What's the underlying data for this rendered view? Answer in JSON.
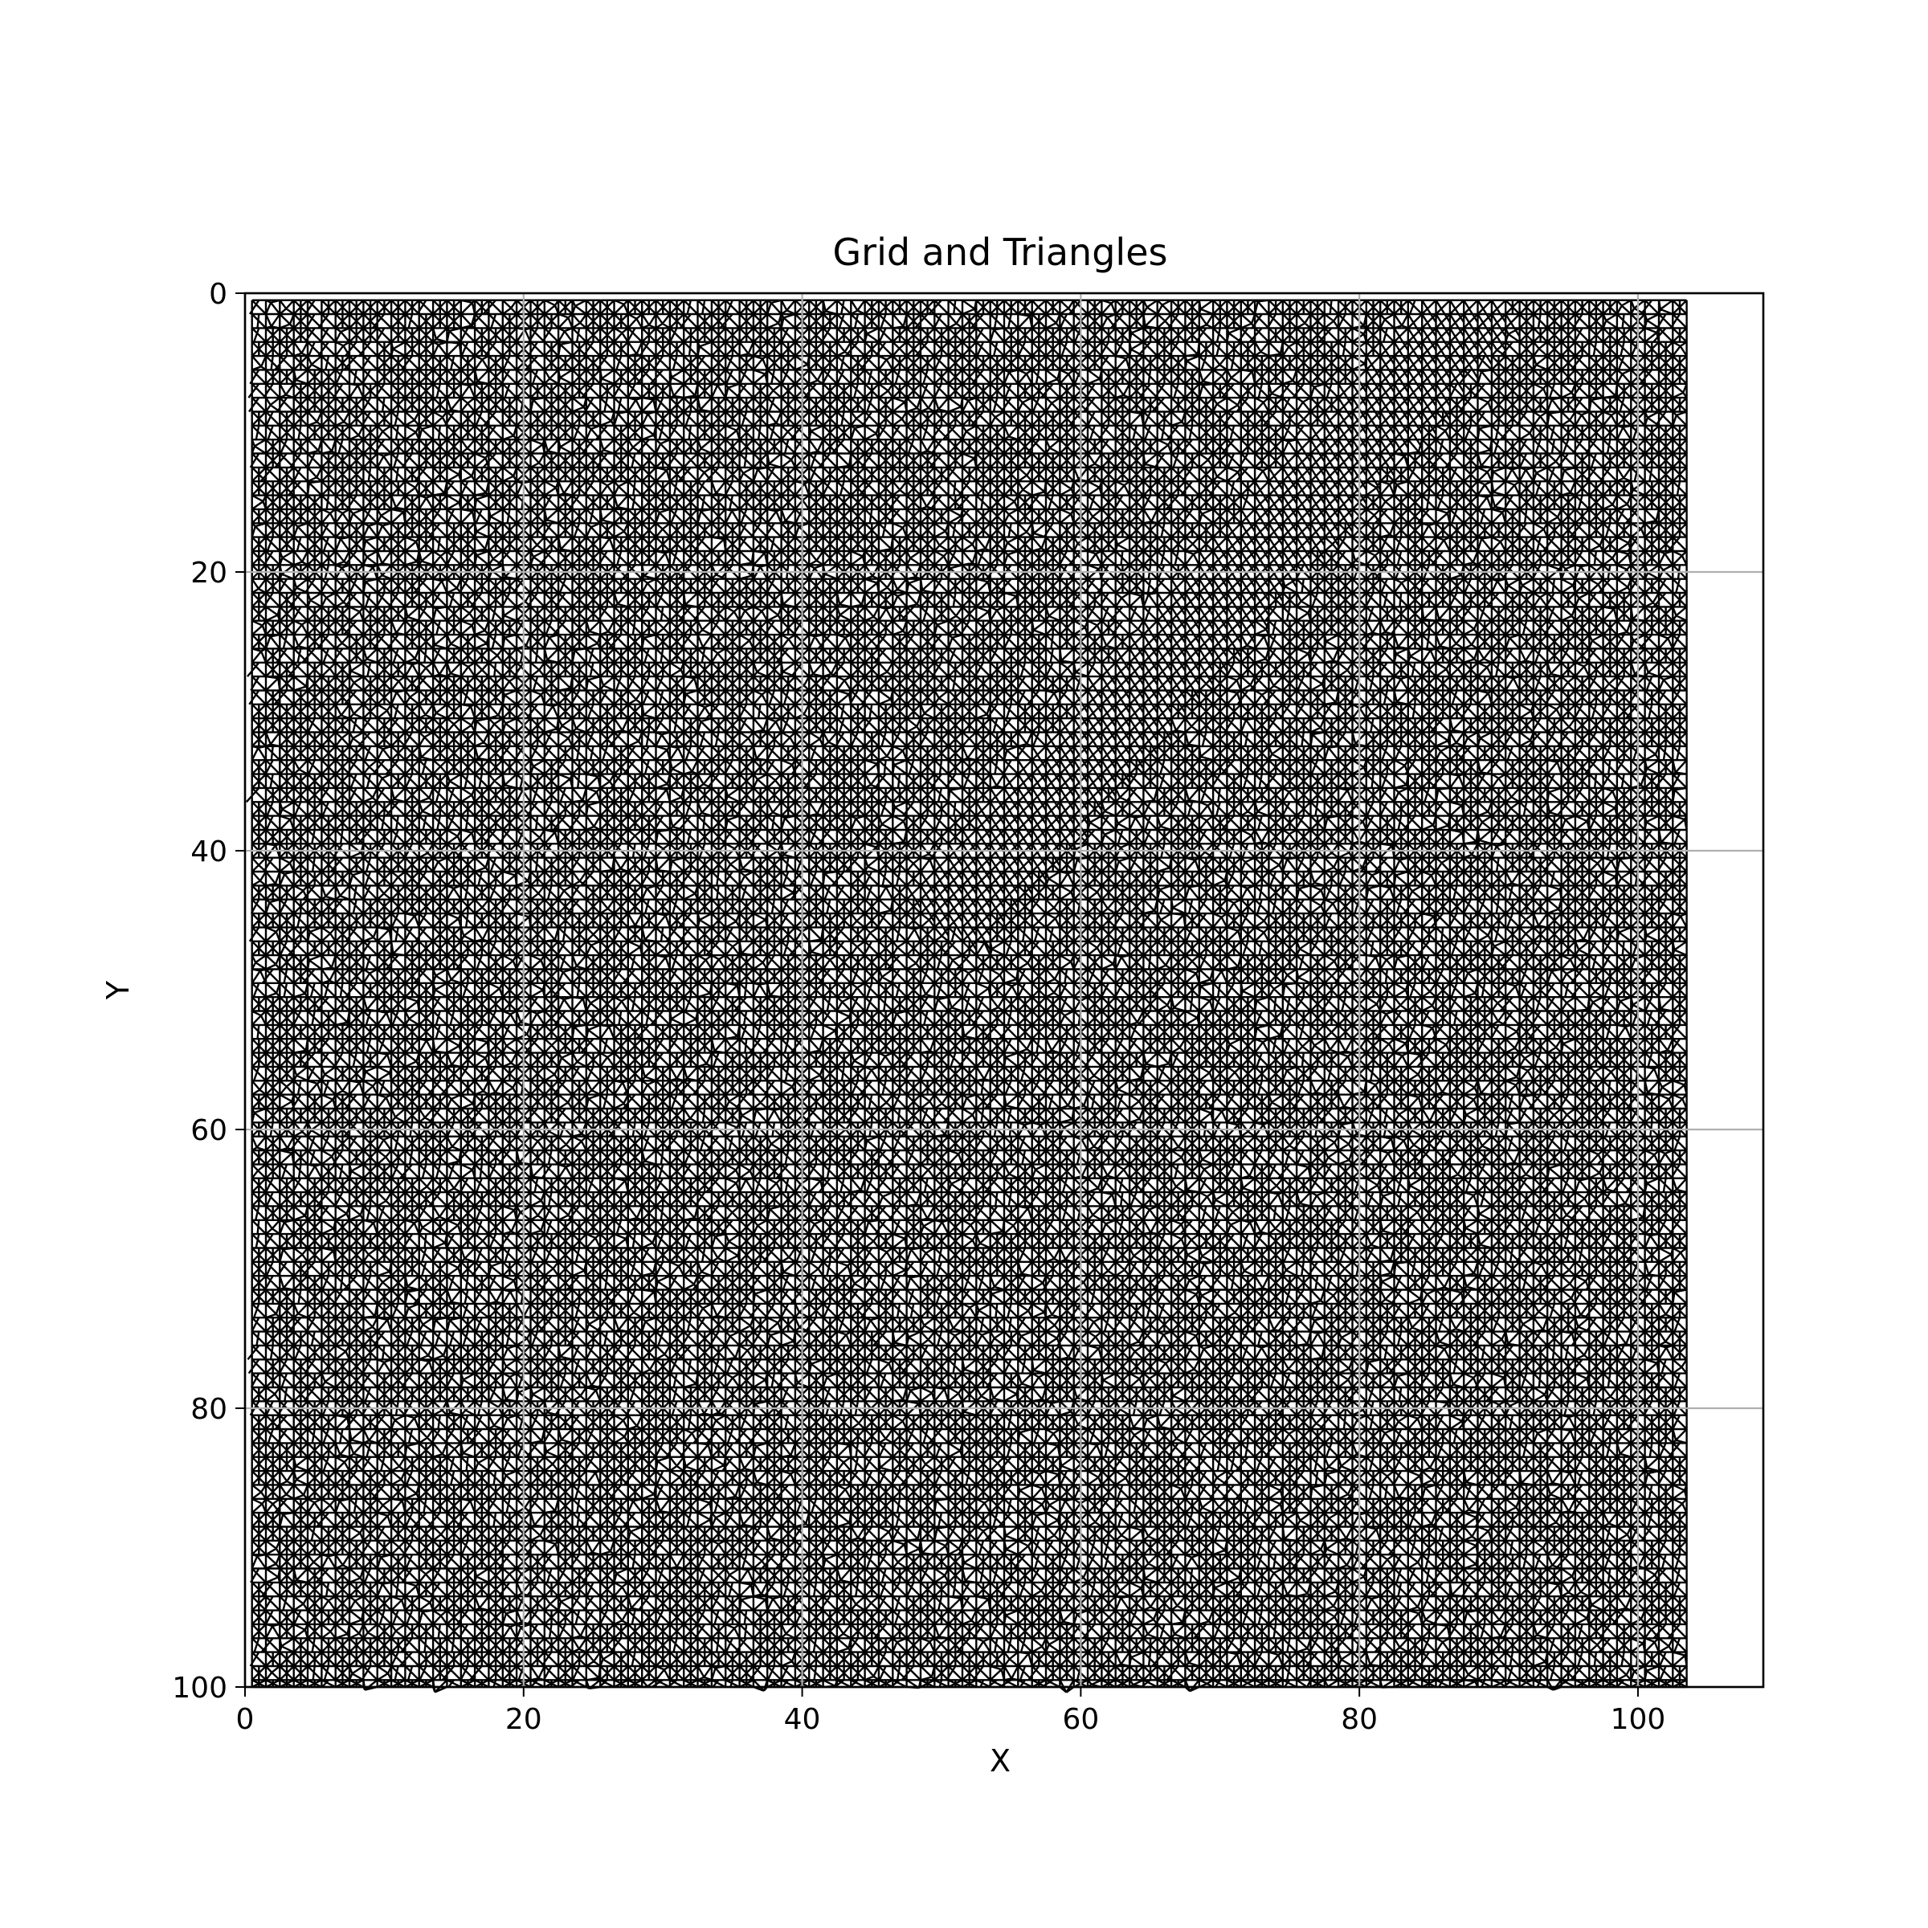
{
  "chart_data": {
    "type": "triangulation",
    "title": "Grid and Triangles",
    "xlabel": "X",
    "ylabel": "Y",
    "xlim": [
      0,
      109
    ],
    "ylim": [
      100,
      0
    ],
    "y_inverted": true,
    "grid": true,
    "xticks": [
      0,
      20,
      40,
      60,
      80,
      100
    ],
    "yticks": [
      0,
      20,
      40,
      60,
      80,
      100
    ],
    "xtick_labels": [
      "0",
      "20",
      "40",
      "60",
      "80",
      "100"
    ],
    "ytick_labels": [
      "0",
      "20",
      "40",
      "60",
      "80",
      "100"
    ],
    "mesh": {
      "x_range": [
        0.5,
        103.5
      ],
      "y_range": [
        0.5,
        100
      ],
      "cell_size": 1,
      "dense_band": {
        "from": [
          89,
          0
        ],
        "to": [
          50,
          45
        ],
        "width": 6
      }
    },
    "colors": {
      "mesh": "#000000",
      "grid": "#b0b0b0",
      "axes": "#000000",
      "background": "#ffffff"
    }
  }
}
